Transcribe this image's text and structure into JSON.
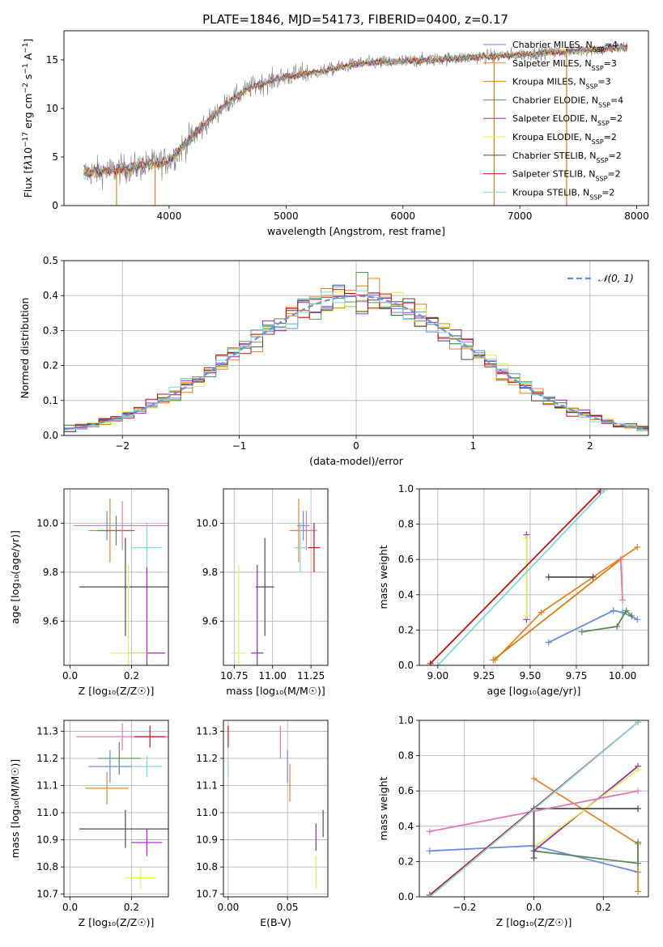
{
  "title": "PLATE=1846, MJD=54173, FIBERID=0400, z=0.17",
  "colors": {
    "c0": "#6b8bdc",
    "c1": "#e8842a",
    "c2": "#d97f0d",
    "c3": "#5a8c5a",
    "c4": "#9b2ab9",
    "c5": "#dff058",
    "c6": "#4d4d4d",
    "c7": "#c41212",
    "c8": "#7fd7df",
    "pink": "#e07ab4",
    "gauss": "#6b93d6"
  },
  "chart_data": [
    {
      "id": "spectrum",
      "type": "line",
      "xlabel": "wavelength [Angstrom, rest frame]",
      "ylabel_html": "Flux [f<tspan font-style=\"italic\">λ</tspan>10<tspan baseline-shift=\"super\" font-size=\"9\">−17</tspan> erg cm<tspan baseline-shift=\"super\" font-size=\"9\">−2</tspan> s<tspan baseline-shift=\"super\" font-size=\"9\">−1</tspan> A<tspan baseline-shift=\"super\" font-size=\"9\">−1</tspan>]",
      "xlim": [
        3100,
        8100
      ],
      "ylim": [
        0,
        18
      ],
      "xticks": [
        4000,
        5000,
        6000,
        7000,
        8000
      ],
      "yticks": [
        0,
        5,
        10,
        15
      ],
      "legend_loc": "upper right",
      "legend": [
        {
          "label": "Chabrier MILES, N",
          "sub": "SSP",
          "val": "=4",
          "color": "c0"
        },
        {
          "label": "Salpeter MILES, N",
          "sub": "SSP",
          "val": "=3",
          "color": "c1"
        },
        {
          "label": "Kroupa MILES, N",
          "sub": "SSP",
          "val": "=3",
          "color": "c2"
        },
        {
          "label": "Chabrier ELODIE, N",
          "sub": "SSP",
          "val": "=4",
          "color": "c3"
        },
        {
          "label": "Salpeter ELODIE, N",
          "sub": "SSP",
          "val": "=2",
          "color": "c4"
        },
        {
          "label": "Kroupa ELODIE, N",
          "sub": "SSP",
          "val": "=2",
          "color": "c5"
        },
        {
          "label": "Chabrier STELIB, N",
          "sub": "SSP",
          "val": "=2",
          "color": "c6"
        },
        {
          "label": "Salpeter STELIB, N",
          "sub": "SSP",
          "val": "=2",
          "color": "c7"
        },
        {
          "label": "Kroupa STELIB, N",
          "sub": "SSP",
          "val": "=2",
          "color": "c8"
        }
      ],
      "continuum": [
        [
          3270,
          3.4
        ],
        [
          3500,
          3.6
        ],
        [
          3700,
          3.9
        ],
        [
          3850,
          4.3
        ],
        [
          4000,
          4.6
        ],
        [
          4150,
          6.5
        ],
        [
          4350,
          8.9
        ],
        [
          4500,
          10.6
        ],
        [
          4700,
          12.2
        ],
        [
          5000,
          13.3
        ],
        [
          5300,
          13.8
        ],
        [
          5600,
          14.6
        ],
        [
          5900,
          14.8
        ],
        [
          6200,
          15.0
        ],
        [
          6500,
          15.2
        ],
        [
          6800,
          15.4
        ],
        [
          7100,
          15.6
        ],
        [
          7400,
          15.9
        ],
        [
          7700,
          16.1
        ],
        [
          7900,
          16.3
        ]
      ],
      "dips": [
        [
          3550,
          0,
          "c1"
        ],
        [
          3880,
          0,
          "c1"
        ],
        [
          6780,
          0,
          "c2"
        ],
        [
          7400,
          0,
          "c2"
        ]
      ]
    },
    {
      "id": "residuals",
      "type": "histogram",
      "xlabel": "(data-model)/error",
      "ylabel": "Normed distribution",
      "xlim": [
        -2.5,
        2.5
      ],
      "ylim": [
        0,
        0.5
      ],
      "xticks": [
        -2,
        -1,
        0,
        1,
        2
      ],
      "xtick_labels": [
        "−2",
        "−1",
        "0",
        "1",
        "2"
      ],
      "yticks": [
        0.0,
        0.1,
        0.2,
        0.3,
        0.4,
        0.5
      ],
      "ytick_labels": [
        "0.0",
        "0.1",
        "0.2",
        "0.3",
        "0.4",
        "0.5"
      ],
      "bin_width": 0.1,
      "legend": "𝒩(0, 1)",
      "legend_loc": "upper right"
    },
    {
      "id": "age_vs_Z",
      "type": "errorbar",
      "xlabel": "Z [log₁₀(Z/Z☉)]",
      "ylabel": "age  [log₁₀(age/yr)]",
      "xlim": [
        -0.02,
        0.32
      ],
      "ylim": [
        9.42,
        10.14
      ],
      "xticks": [
        0.0,
        0.2
      ],
      "xtick_labels": [
        "0.0",
        "0.2"
      ],
      "yticks": [
        9.6,
        9.8,
        10.0
      ],
      "ytick_labels": [
        "9.6",
        "9.8",
        "10.0"
      ],
      "points": [
        {
          "x": 0.12,
          "y": 9.99,
          "xerr": 0.09,
          "yerr": 0.06,
          "color": "c0"
        },
        {
          "x": 0.13,
          "y": 9.97,
          "xerr": 0.07,
          "yerr": 0.13,
          "color": "c1"
        },
        {
          "x": 0.15,
          "y": 9.97,
          "xerr": 0.06,
          "yerr": 0.06,
          "color": "c3"
        },
        {
          "x": 0.17,
          "y": 9.99,
          "xerr": 0.16,
          "yerr": 0.1,
          "color": "pink"
        },
        {
          "x": 0.25,
          "y": 9.9,
          "xerr": 0.05,
          "yerr": 0.1,
          "color": "c8"
        },
        {
          "x": 0.18,
          "y": 9.74,
          "xerr": 0.15,
          "yerr": 0.2,
          "color": "c6"
        },
        {
          "x": 0.25,
          "y": 9.47,
          "xerr": 0.06,
          "yerr": 0.35,
          "color": "c4"
        },
        {
          "x": 0.19,
          "y": 9.47,
          "xerr": 0.06,
          "yerr": 0.36,
          "color": "c5"
        }
      ]
    },
    {
      "id": "age_vs_mass",
      "type": "errorbar",
      "xlabel": "mass [log₁₀(M/M☉)]",
      "ylabel": "",
      "xlim": [
        10.68,
        11.36
      ],
      "ylim": [
        9.42,
        10.14
      ],
      "xticks": [
        10.75,
        11.0,
        11.25
      ],
      "xtick_labels": [
        "10.75",
        "11.00",
        "11.25"
      ],
      "yticks": [
        9.6,
        9.8,
        10.0
      ],
      "ytick_labels": [
        "9.6",
        "9.8",
        "10.0"
      ],
      "points": [
        {
          "x": 11.17,
          "y": 9.97,
          "xerr": 0.06,
          "yerr": 0.13,
          "color": "c1"
        },
        {
          "x": 11.2,
          "y": 9.99,
          "xerr": 0.04,
          "yerr": 0.06,
          "color": "c0"
        },
        {
          "x": 11.22,
          "y": 9.97,
          "xerr": 0.07,
          "yerr": 0.08,
          "color": "pink"
        },
        {
          "x": 11.18,
          "y": 9.9,
          "xerr": 0.04,
          "yerr": 0.1,
          "color": "c8"
        },
        {
          "x": 11.27,
          "y": 9.9,
          "xerr": 0.04,
          "yerr": 0.1,
          "color": "c7"
        },
        {
          "x": 10.95,
          "y": 9.74,
          "xerr": 0.06,
          "yerr": 0.2,
          "color": "c6"
        },
        {
          "x": 10.9,
          "y": 9.47,
          "xerr": 0.04,
          "yerr": 0.36,
          "color": "c4"
        },
        {
          "x": 10.78,
          "y": 9.47,
          "xerr": 0.05,
          "yerr": 0.36,
          "color": "c5"
        }
      ]
    },
    {
      "id": "weight_vs_age",
      "type": "line",
      "xlabel": "age  [log₁₀(age/yr)]",
      "ylabel": "mass weight",
      "xlim": [
        8.9,
        10.14
      ],
      "ylim": [
        0,
        1.0
      ],
      "xticks": [
        9.0,
        9.25,
        9.5,
        9.75,
        10.0
      ],
      "xtick_labels": [
        "9.00",
        "9.25",
        "9.50",
        "9.75",
        "10.00"
      ],
      "yticks": [
        0,
        0.2,
        0.4,
        0.6,
        0.8,
        1.0
      ],
      "ytick_labels": [
        "0.0",
        "0.2",
        "0.4",
        "0.6",
        "0.8",
        "1.0"
      ],
      "series": [
        {
          "color": "c0",
          "points": [
            [
              9.6,
              0.13
            ],
            [
              9.95,
              0.31
            ],
            [
              10.0,
              0.3
            ],
            [
              10.08,
              0.26
            ]
          ]
        },
        {
          "color": "c1",
          "points": [
            [
              9.31,
              0.03
            ],
            [
              9.56,
              0.3
            ],
            [
              10.08,
              0.67
            ]
          ]
        },
        {
          "color": "c3",
          "points": [
            [
              9.78,
              0.19
            ],
            [
              9.97,
              0.22
            ],
            [
              10.02,
              0.31
            ],
            [
              10.05,
              0.28
            ]
          ]
        },
        {
          "color": "c4",
          "points": [
            [
              9.48,
              0.26
            ],
            [
              9.48,
              0.74
            ]
          ]
        },
        {
          "color": "c5",
          "points": [
            [
              9.48,
              0.28
            ],
            [
              9.48,
              0.72
            ]
          ]
        },
        {
          "color": "c6",
          "points": [
            [
              9.6,
              0.5
            ],
            [
              9.84,
              0.5
            ]
          ]
        },
        {
          "color": "c2",
          "points": [
            [
              9.3,
              0.03
            ],
            [
              9.99,
              0.6
            ]
          ]
        },
        {
          "color": "pink",
          "points": [
            [
              9.99,
              0.6
            ],
            [
              10.0,
              0.37
            ]
          ]
        },
        {
          "color": "c7",
          "points": [
            [
              8.96,
              0.01
            ],
            [
              9.88,
              0.99
            ]
          ]
        },
        {
          "color": "c8",
          "points": [
            [
              9.0,
              0.0
            ],
            [
              9.9,
              0.99
            ]
          ]
        }
      ]
    },
    {
      "id": "mass_vs_Z",
      "type": "errorbar",
      "xlabel": "Z [log₁₀(Z/Z☉)]",
      "ylabel": "mass [log₁₀(M/M☉)]",
      "xlim": [
        -0.02,
        0.32
      ],
      "ylim": [
        10.69,
        11.34
      ],
      "xticks": [
        0.0,
        0.2
      ],
      "xtick_labels": [
        "0.0",
        "0.2"
      ],
      "yticks": [
        10.7,
        10.8,
        10.9,
        11.0,
        11.1,
        11.2,
        11.3
      ],
      "ytick_labels": [
        "10.7",
        "10.8",
        "10.9",
        "11.0",
        "11.1",
        "11.2",
        "11.3"
      ],
      "points": [
        {
          "x": 0.17,
          "y": 11.28,
          "xerr": 0.15,
          "yerr": 0.05,
          "color": "pink"
        },
        {
          "x": 0.26,
          "y": 11.28,
          "xerr": 0.05,
          "yerr": 0.04,
          "color": "c7"
        },
        {
          "x": 0.16,
          "y": 11.2,
          "xerr": 0.07,
          "yerr": 0.06,
          "color": "c3"
        },
        {
          "x": 0.13,
          "y": 11.17,
          "xerr": 0.07,
          "yerr": 0.06,
          "color": "c0"
        },
        {
          "x": 0.25,
          "y": 11.17,
          "xerr": 0.05,
          "yerr": 0.04,
          "color": "c8"
        },
        {
          "x": 0.12,
          "y": 11.09,
          "xerr": 0.07,
          "yerr": 0.06,
          "color": "c1"
        },
        {
          "x": 0.18,
          "y": 10.94,
          "xerr": 0.15,
          "yerr": 0.07,
          "color": "c6"
        },
        {
          "x": 0.25,
          "y": 10.89,
          "xerr": 0.05,
          "yerr": 0.05,
          "color": "c4"
        },
        {
          "x": 0.23,
          "y": 10.76,
          "xerr": 0.05,
          "yerr": 0.04,
          "color": "c5"
        }
      ]
    },
    {
      "id": "mass_vs_EBV",
      "type": "errorbar",
      "xlabel": "E(B-V)",
      "ylabel": "",
      "xlim": [
        -0.004,
        0.084
      ],
      "ylim": [
        10.69,
        11.34
      ],
      "xticks": [
        0.0,
        0.05
      ],
      "xtick_labels": [
        "0.00",
        "0.05"
      ],
      "yticks": [
        10.7,
        10.8,
        10.9,
        11.0,
        11.1,
        11.2,
        11.3
      ],
      "ytick_labels": [
        "10.7",
        "10.8",
        "10.9",
        "11.0",
        "11.1",
        "11.2",
        "11.3"
      ],
      "points": [
        {
          "x": 0.0,
          "y": 11.28,
          "xerr": 0,
          "yerr": 0.04,
          "color": "c7"
        },
        {
          "x": 0.0,
          "y": 11.17,
          "xerr": 0,
          "yerr": 0.04,
          "color": "c8"
        },
        {
          "x": 0.044,
          "y": 11.26,
          "xerr": 0,
          "yerr": 0.06,
          "color": "pink"
        },
        {
          "x": 0.05,
          "y": 11.17,
          "xerr": 0,
          "yerr": 0.06,
          "color": "c0"
        },
        {
          "x": 0.052,
          "y": 11.11,
          "xerr": 0,
          "yerr": 0.07,
          "color": "c1"
        },
        {
          "x": 0.074,
          "y": 10.91,
          "xerr": 0,
          "yerr": 0.05,
          "color": "c4"
        },
        {
          "x": 0.074,
          "y": 10.78,
          "xerr": 0,
          "yerr": 0.06,
          "color": "c5"
        },
        {
          "x": 0.08,
          "y": 10.96,
          "xerr": 0,
          "yerr": 0.05,
          "color": "c6"
        }
      ]
    },
    {
      "id": "weight_vs_Z",
      "type": "line",
      "xlabel": "Z [log₁₀(Z/Z☉)]",
      "ylabel": "mass weight",
      "xlim": [
        -0.33,
        0.33
      ],
      "ylim": [
        0,
        1.0
      ],
      "xticks": [
        -0.2,
        0.0,
        0.2
      ],
      "xtick_labels": [
        "−0.2",
        "0.0",
        "0.2"
      ],
      "yticks": [
        0,
        0.2,
        0.4,
        0.6,
        0.8,
        1.0
      ],
      "ytick_labels": [
        "0.0",
        "0.2",
        "0.4",
        "0.6",
        "0.8",
        "1.0"
      ],
      "series": [
        {
          "color": "c0",
          "points": [
            [
              -0.3,
              0.26
            ],
            [
              0.0,
              0.29
            ],
            [
              0.3,
              0.14
            ]
          ]
        },
        {
          "color": "c1",
          "points": [
            [
              0.0,
              0.67
            ],
            [
              0.3,
              0.3
            ],
            [
              0.3,
              0.03
            ]
          ]
        },
        {
          "color": "c3",
          "points": [
            [
              0.0,
              0.26
            ],
            [
              0.3,
              0.19
            ],
            [
              0.3,
              0.31
            ]
          ]
        },
        {
          "color": "c4",
          "points": [
            [
              0.0,
              0.26
            ],
            [
              0.3,
              0.74
            ]
          ]
        },
        {
          "color": "c5",
          "points": [
            [
              0.0,
              0.28
            ],
            [
              0.3,
              0.72
            ]
          ]
        },
        {
          "color": "c6",
          "points": [
            [
              0.0,
              0.22
            ],
            [
              0.0,
              0.5
            ],
            [
              0.3,
              0.5
            ]
          ]
        },
        {
          "color": "pink",
          "points": [
            [
              -0.3,
              0.37
            ],
            [
              0.3,
              0.6
            ]
          ]
        },
        {
          "color": "c7",
          "points": [
            [
              -0.3,
              0.01
            ],
            [
              0.3,
              0.99
            ]
          ]
        },
        {
          "color": "c8",
          "points": [
            [
              -0.3,
              0.0
            ],
            [
              0.3,
              0.99
            ]
          ]
        }
      ]
    }
  ]
}
